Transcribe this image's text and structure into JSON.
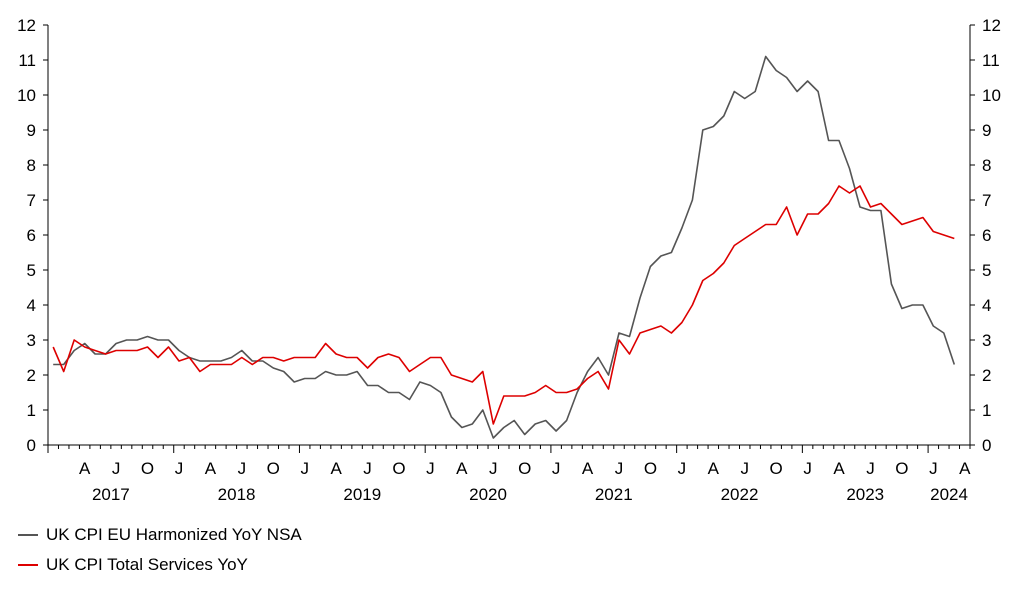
{
  "chart_data": {
    "type": "line",
    "title": "",
    "xlabel": "",
    "ylabel": "",
    "ylim": [
      0,
      12
    ],
    "yticks": [
      "0",
      "1",
      "2",
      "3",
      "4",
      "5",
      "6",
      "7",
      "8",
      "9",
      "10",
      "11",
      "12"
    ],
    "month_tick_labels": [
      "J",
      "A",
      "J",
      "O"
    ],
    "year_labels": [
      "2017",
      "2018",
      "2019",
      "2020",
      "2021",
      "2022",
      "2023",
      "2024"
    ],
    "x_start": "2017-01",
    "x_end": "2024-03",
    "legend_position": "bottom-left",
    "grid": false,
    "series": [
      {
        "name": "UK CPI EU Harmonized YoY NSA",
        "color": "#555555",
        "values": [
          2.3,
          2.3,
          2.7,
          2.9,
          2.6,
          2.6,
          2.9,
          3.0,
          3.0,
          3.1,
          3.0,
          3.0,
          2.7,
          2.5,
          2.4,
          2.4,
          2.4,
          2.5,
          2.7,
          2.4,
          2.4,
          2.2,
          2.1,
          1.8,
          1.9,
          1.9,
          2.1,
          2.0,
          2.0,
          2.1,
          1.7,
          1.7,
          1.5,
          1.5,
          1.3,
          1.8,
          1.7,
          1.5,
          0.8,
          0.5,
          0.6,
          1.0,
          0.2,
          0.5,
          0.7,
          0.3,
          0.6,
          0.7,
          0.4,
          0.7,
          1.5,
          2.1,
          2.5,
          2.0,
          3.2,
          3.1,
          4.2,
          5.1,
          5.4,
          5.5,
          6.2,
          7.0,
          9.0,
          9.1,
          9.4,
          10.1,
          9.9,
          10.1,
          11.1,
          10.7,
          10.5,
          10.1,
          10.4,
          10.1,
          8.7,
          8.7,
          7.9,
          6.8,
          6.7,
          6.7,
          4.6,
          3.9,
          4.0,
          4.0,
          3.4,
          3.2,
          2.3
        ]
      },
      {
        "name": "UK CPI Total Services YoY",
        "color": "#dd0000",
        "values": [
          2.8,
          2.1,
          3.0,
          2.8,
          2.7,
          2.6,
          2.7,
          2.7,
          2.7,
          2.8,
          2.5,
          2.8,
          2.4,
          2.5,
          2.1,
          2.3,
          2.3,
          2.3,
          2.5,
          2.3,
          2.5,
          2.5,
          2.4,
          2.5,
          2.5,
          2.5,
          2.9,
          2.6,
          2.5,
          2.5,
          2.2,
          2.5,
          2.6,
          2.5,
          2.1,
          2.3,
          2.5,
          2.5,
          2.0,
          1.9,
          1.8,
          2.1,
          0.6,
          1.4,
          1.4,
          1.4,
          1.5,
          1.7,
          1.5,
          1.5,
          1.6,
          1.9,
          2.1,
          1.6,
          3.0,
          2.6,
          3.2,
          3.3,
          3.4,
          3.2,
          3.5,
          4.0,
          4.7,
          4.9,
          5.2,
          5.7,
          5.9,
          6.1,
          6.3,
          6.3,
          6.8,
          6.0,
          6.6,
          6.6,
          6.9,
          7.4,
          7.2,
          7.4,
          6.8,
          6.9,
          6.6,
          6.3,
          6.4,
          6.5,
          6.1,
          6.0,
          5.9
        ]
      }
    ]
  }
}
